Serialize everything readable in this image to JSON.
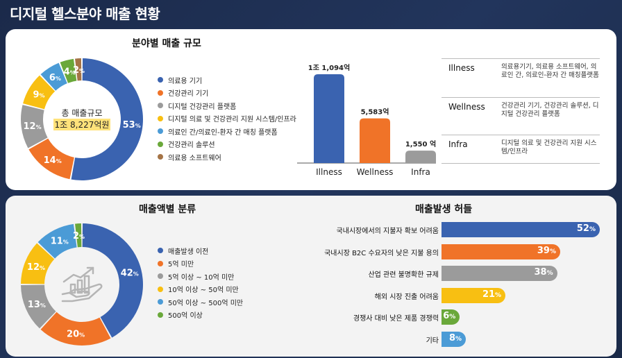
{
  "title": "디지털 헬스분야 매출 현황",
  "chart_data": [
    {
      "type": "pie",
      "title": "분야별 매출 규모",
      "center_label": "총 매출규모",
      "center_value": "1조 8,227억원",
      "categories": [
        "의료용 기기",
        "건강관리 기기",
        "디지털 건강관리 플랫폼",
        "디지털 의료 및 건강관리 지원 시스템/인프라",
        "의료인 간/의료인-환자 간 매칭 플랫폼",
        "건강관리 솔루션",
        "의료용 소프트웨어"
      ],
      "values": [
        53,
        14,
        12,
        9,
        6,
        4,
        2
      ],
      "labels": [
        "53",
        "14",
        "12",
        "9",
        "6",
        "4",
        "2"
      ],
      "unit": "%",
      "colors": [
        "#3a63b0",
        "#f07328",
        "#9b9b9b",
        "#f8bf12",
        "#4b9bd6",
        "#6aa83a",
        "#a57446"
      ]
    },
    {
      "type": "bar",
      "categories": [
        "Illness",
        "Wellness",
        "Infra"
      ],
      "values": [
        11094,
        5583,
        1550
      ],
      "labels": [
        "1조 1,094억",
        "5,583억",
        "1,550 억"
      ],
      "colors": [
        "#3a63b0",
        "#f07328",
        "#9b9b9b"
      ],
      "ylim": [
        0,
        11094
      ]
    },
    {
      "type": "pie",
      "title": "매출액별 분류",
      "categories": [
        "매출발생 이전",
        "5억 미만",
        "5억 이상 ~ 10억 미만",
        "10억 이상 ~ 50억 미만",
        "50억 이상 ~ 500억 미만",
        "500억 이상"
      ],
      "values": [
        42,
        20,
        13,
        12,
        11,
        2
      ],
      "labels": [
        "42",
        "20",
        "13",
        "12",
        "11",
        "2"
      ],
      "unit": "%",
      "colors": [
        "#3a63b0",
        "#f07328",
        "#9b9b9b",
        "#f8bf12",
        "#4b9bd6",
        "#6aa83a"
      ]
    },
    {
      "type": "bar",
      "orientation": "horizontal",
      "title": "매출발생 허들",
      "categories": [
        "국내시장에서의 지불자 확보 어려움",
        "국내시장 B2C 수요자의 낮은 지불 용의",
        "산업 관련 불명확한 규제",
        "해외 시장 진출 어려움",
        "경쟁사 대비 낮은 제품 경쟁력",
        "기타"
      ],
      "values": [
        52,
        39,
        38,
        21,
        6,
        8
      ],
      "labels": [
        "52",
        "39",
        "38",
        "21",
        "6",
        "8"
      ],
      "unit": "%",
      "colors": [
        "#3a63b0",
        "#f07328",
        "#9b9b9b",
        "#f8bf12",
        "#6aa83a",
        "#4b9bd6"
      ]
    }
  ],
  "definitions": [
    {
      "key": "Illness",
      "value": "의료용기기, 의료용 소프트웨어, 의료인 간, 의료인-환자 간 매칭플랫폼"
    },
    {
      "key": "Wellness",
      "value": "건강관리 기기, 건강관리 솔루션, 디지털 건강관리 플랫폼"
    },
    {
      "key": "Infra",
      "value": "디지털 의료 및 건강관리 지원 시스템/인프라"
    }
  ],
  "icons": {
    "center_icon": "growth-chart-hand-icon"
  }
}
